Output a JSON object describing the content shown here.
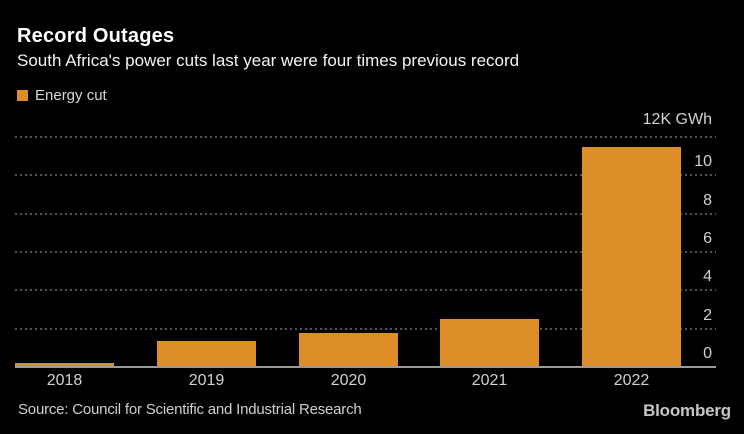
{
  "header": {
    "title": "Record Outages",
    "subtitle": "South Africa's power cuts last year were four times previous record"
  },
  "legend": {
    "label": "Energy cut",
    "swatch_color": "#DE8E28"
  },
  "axis": {
    "unit_label": "12K GWh",
    "ticks": [
      0,
      2,
      4,
      6,
      8,
      10
    ],
    "grid_values": [
      2,
      4,
      6,
      8,
      10,
      12
    ],
    "max": 12
  },
  "chart_data": {
    "type": "bar",
    "categories": [
      "2018",
      "2019",
      "2020",
      "2021",
      "2022"
    ],
    "values": [
      0.2,
      1.35,
      1.8,
      2.5,
      11.5
    ],
    "series_name": "Energy cut",
    "title": "Record Outages",
    "subtitle": "South Africa's power cuts last year were four times previous record",
    "xlabel": "",
    "ylabel": "12K GWh",
    "ylim": [
      0,
      12
    ],
    "grid": "horizontal-dotted",
    "legend_position": "top-left",
    "bar_color": "#DE8E28",
    "background_color": "#000000"
  },
  "footer": {
    "source": "Source: Council for Scientific and Industrial Research",
    "brand": "Bloomberg"
  },
  "colors": {
    "bar": "#DE8E28",
    "background": "#000000",
    "gridline": "#545454",
    "axis_line": "#9a9a9a",
    "text_primary": "#ffffff",
    "text_secondary": "#d2d2d2"
  }
}
